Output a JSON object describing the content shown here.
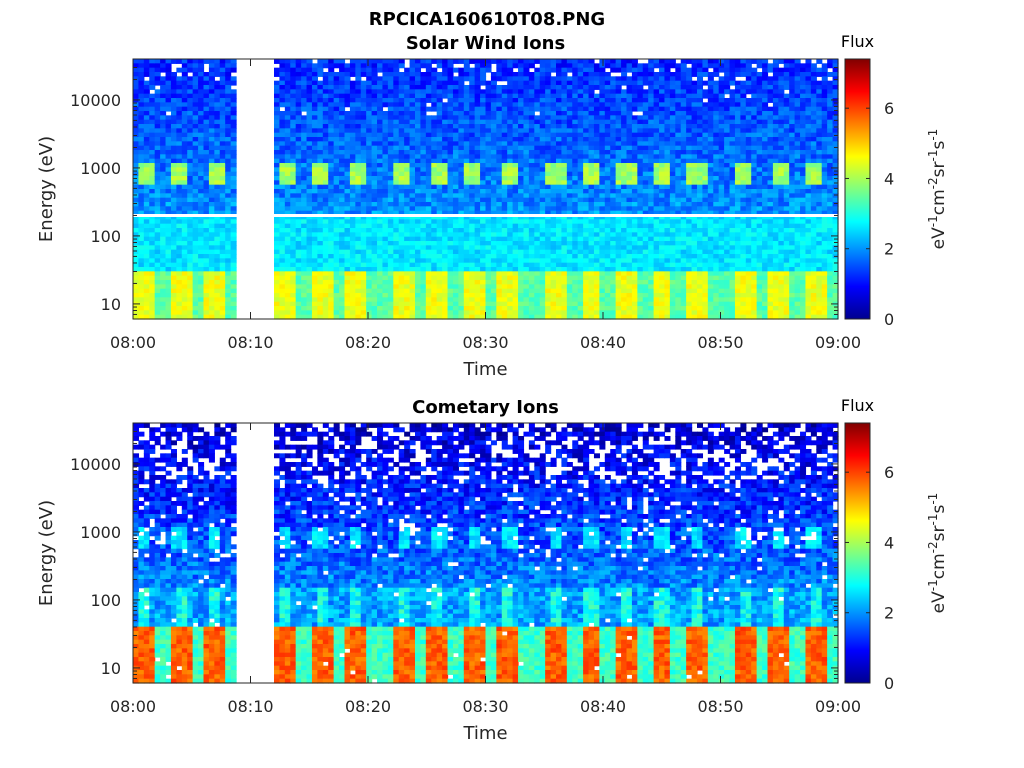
{
  "figure_title": "RPCICA160610T08.PNG",
  "chart_data": [
    {
      "type": "heatmap",
      "title": "Solar Wind Ions",
      "xlabel": "Time",
      "ylabel": "Energy (eV)",
      "x_ticks": [
        "08:00",
        "08:10",
        "08:20",
        "08:30",
        "08:40",
        "08:50",
        "09:00"
      ],
      "xlim": [
        "08:00",
        "09:00"
      ],
      "y_scale": "log",
      "y_ticks": [
        10,
        100,
        1000,
        10000
      ],
      "y_tick_labels": [
        "10",
        "100",
        "1000",
        "10000"
      ],
      "ylim": [
        6,
        40000
      ],
      "data_gap": [
        "08:09",
        "08:12"
      ],
      "colorbar": {
        "label": "Flux",
        "unit_base": [
          "eV",
          "cm",
          "sr",
          "s"
        ],
        "unit_exponents": [
          "-1",
          "-2",
          "-1",
          "-1"
        ],
        "ticks": [
          "0",
          "2",
          "4",
          "6"
        ],
        "range": [
          0,
          7.4
        ],
        "colormap": "jet"
      },
      "features": {
        "solar_wind_bursts_energy_eV": 800,
        "solar_wind_burst_times": [
          "08:01",
          "08:04",
          "08:07",
          "08:13",
          "08:16",
          "08:19",
          "08:23",
          "08:26",
          "08:29",
          "08:32",
          "08:36",
          "08:39",
          "08:42",
          "08:45",
          "08:48",
          "08:52",
          "08:55",
          "08:58"
        ],
        "low_energy_band_eV": [
          6,
          30
        ],
        "horizontal_line_energy_eV": 200
      }
    },
    {
      "type": "heatmap",
      "title": "Cometary Ions",
      "xlabel": "Time",
      "ylabel": "Energy (eV)",
      "x_ticks": [
        "08:00",
        "08:10",
        "08:20",
        "08:30",
        "08:40",
        "08:50",
        "09:00"
      ],
      "xlim": [
        "08:00",
        "09:00"
      ],
      "y_scale": "log",
      "y_ticks": [
        10,
        100,
        1000,
        10000
      ],
      "y_tick_labels": [
        "10",
        "100",
        "1000",
        "10000"
      ],
      "ylim": [
        6,
        40000
      ],
      "data_gap": [
        "08:09",
        "08:12"
      ],
      "colorbar": {
        "label": "Flux",
        "unit_base": [
          "eV",
          "cm",
          "sr",
          "s"
        ],
        "unit_exponents": [
          "-1",
          "-2",
          "-1",
          "-1"
        ],
        "ticks": [
          "0",
          "2",
          "4",
          "6"
        ],
        "range": [
          0,
          7.4
        ],
        "colormap": "jet"
      },
      "features": {
        "bursts_energy_eV": 800,
        "burst_times": [
          "08:01",
          "08:04",
          "08:07",
          "08:13",
          "08:16",
          "08:19",
          "08:23",
          "08:26",
          "08:29",
          "08:32",
          "08:36",
          "08:39",
          "08:42",
          "08:45",
          "08:48",
          "08:52",
          "08:55",
          "08:58"
        ],
        "low_energy_band_eV": [
          6,
          40
        ]
      }
    }
  ]
}
